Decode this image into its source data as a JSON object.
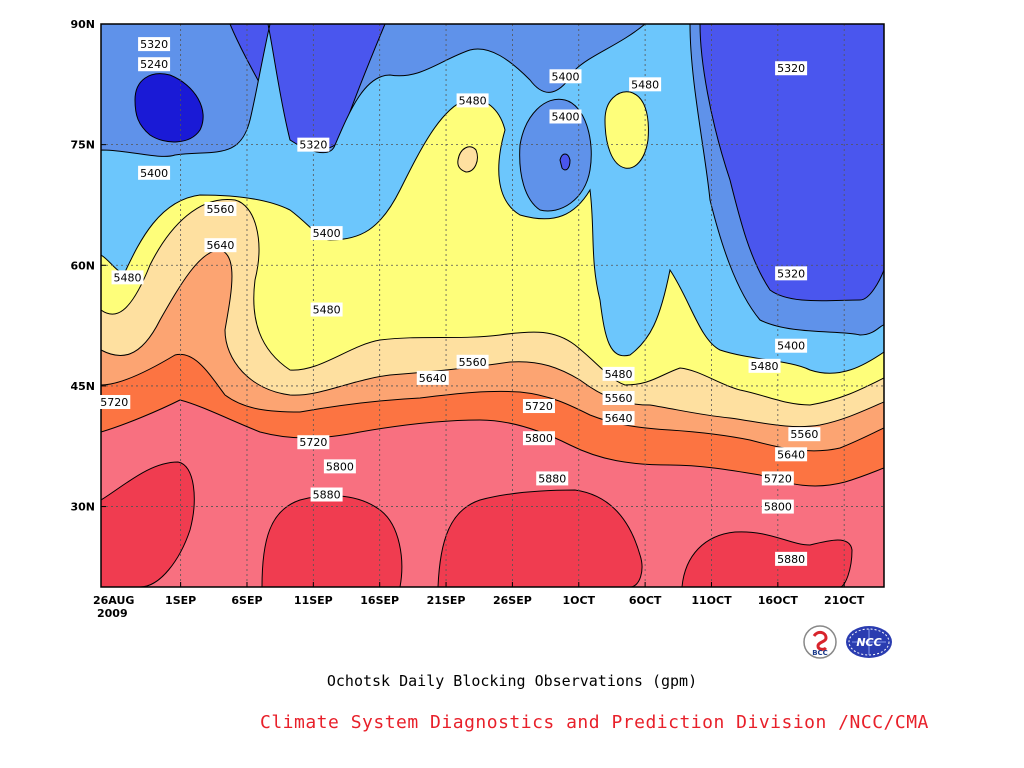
{
  "caption": "Ochotsk Daily Blocking Observations (gpm)",
  "credit": "Climate System Diagnostics and Prediction Division /NCC/CMA",
  "logos": [
    {
      "icon": "bcc-logo-icon",
      "text": "BCC"
    },
    {
      "icon": "ncc-logo-icon",
      "text": "NCC"
    }
  ],
  "chart_data": {
    "type": "heatmap",
    "title": "",
    "xlabel": "",
    "ylabel": "",
    "x_ticks": [
      {
        "label": "26AUG",
        "sublabel": "2009",
        "day": 0
      },
      {
        "label": "1SEP",
        "day": 6
      },
      {
        "label": "6SEP",
        "day": 11
      },
      {
        "label": "11SEP",
        "day": 16
      },
      {
        "label": "16SEP",
        "day": 21
      },
      {
        "label": "21SEP",
        "day": 26
      },
      {
        "label": "26SEP",
        "day": 31
      },
      {
        "label": "1OCT",
        "day": 36
      },
      {
        "label": "6OCT",
        "day": 41
      },
      {
        "label": "11OCT",
        "day": 46
      },
      {
        "label": "16OCT",
        "day": 51
      },
      {
        "label": "21OCT",
        "day": 56
      }
    ],
    "xlim": [
      0,
      59
    ],
    "y_ticks": [
      {
        "label": "90N",
        "value": 90
      },
      {
        "label": "75N",
        "value": 75
      },
      {
        "label": "60N",
        "value": 60
      },
      {
        "label": "45N",
        "value": 45
      },
      {
        "label": "30N",
        "value": 30
      }
    ],
    "ylim": [
      20,
      90
    ],
    "contour_levels": [
      5320,
      5400,
      5480,
      5560,
      5640,
      5720,
      5800,
      5880
    ],
    "fill_colors": {
      "below_5240": "#1a1ad6",
      "5240_5320": "#4a56ee",
      "5320_5400": "#5f92ea",
      "5400_5480": "#6cc6fc",
      "5480_5560": "#fefe7a",
      "5560_5640": "#fee0a0",
      "5640_5720": "#fca472",
      "5720_5800": "#fc7442",
      "5800_5880": "#f87080",
      "above_5880": "#f03c50"
    },
    "grid": true,
    "contour_labels": [
      {
        "text": "5320",
        "day": 4,
        "lat": 87.5
      },
      {
        "text": "5240",
        "day": 4,
        "lat": 85.0
      },
      {
        "text": "5400",
        "day": 4,
        "lat": 71.5
      },
      {
        "text": "5560",
        "day": 9,
        "lat": 67.0
      },
      {
        "text": "5640",
        "day": 9,
        "lat": 62.5
      },
      {
        "text": "5480",
        "day": 2,
        "lat": 58.5
      },
      {
        "text": "5320",
        "day": 16,
        "lat": 75.0
      },
      {
        "text": "5400",
        "day": 17,
        "lat": 64.0
      },
      {
        "text": "5480",
        "day": 17,
        "lat": 54.5
      },
      {
        "text": "5480",
        "day": 28,
        "lat": 80.5
      },
      {
        "text": "5400",
        "day": 35,
        "lat": 83.5
      },
      {
        "text": "5400",
        "day": 35,
        "lat": 78.5
      },
      {
        "text": "5480",
        "day": 41,
        "lat": 82.5
      },
      {
        "text": "5320",
        "day": 52,
        "lat": 84.5
      },
      {
        "text": "5320",
        "day": 52,
        "lat": 59.0
      },
      {
        "text": "5400",
        "day": 52,
        "lat": 50.0
      },
      {
        "text": "5480",
        "day": 50,
        "lat": 47.5
      },
      {
        "text": "5560",
        "day": 28,
        "lat": 48.0
      },
      {
        "text": "5640",
        "day": 25,
        "lat": 46.0
      },
      {
        "text": "5480",
        "day": 39,
        "lat": 46.5
      },
      {
        "text": "5560",
        "day": 39,
        "lat": 43.5
      },
      {
        "text": "5640",
        "day": 39,
        "lat": 41.0
      },
      {
        "text": "5720",
        "day": 33,
        "lat": 42.5
      },
      {
        "text": "5800",
        "day": 33,
        "lat": 38.5
      },
      {
        "text": "5720",
        "day": 1,
        "lat": 43.0
      },
      {
        "text": "5720",
        "day": 16,
        "lat": 38.0
      },
      {
        "text": "5800",
        "day": 18,
        "lat": 35.0
      },
      {
        "text": "5880",
        "day": 17,
        "lat": 31.5
      },
      {
        "text": "5880",
        "day": 34,
        "lat": 33.5
      },
      {
        "text": "5560",
        "day": 53,
        "lat": 39.0
      },
      {
        "text": "5640",
        "day": 52,
        "lat": 36.5
      },
      {
        "text": "5720",
        "day": 51,
        "lat": 33.5
      },
      {
        "text": "5800",
        "day": 51,
        "lat": 30.0
      },
      {
        "text": "5880",
        "day": 52,
        "lat": 23.5
      }
    ]
  }
}
